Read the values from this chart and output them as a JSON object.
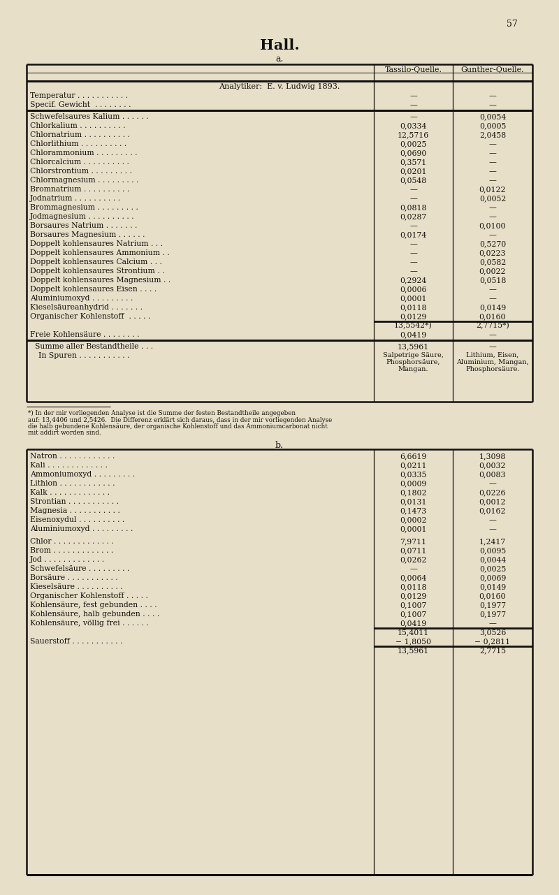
{
  "page_number": "57",
  "title": "Hall.",
  "subtitle": "a.",
  "bg_color": "#e8dfc8",
  "text_color": "#111111",
  "col_header_1": "Tassilo-Quelle.",
  "col_header_2": "Gunther-Quelle.",
  "analytiker_line": "Analytiker:  E. v. Ludwig 1893.",
  "section_a_rows": [
    [
      "Temperatur . . . . . . . . . . .",
      "—",
      "—"
    ],
    [
      "Specif. Gewicht  . . . . . . . .",
      "—",
      "—"
    ],
    [
      "__thick_sep__",
      "",
      ""
    ],
    [
      "Schwefelsaures Kalium . . . . . .",
      "—",
      "0,0054"
    ],
    [
      "Chlorkalium . . . . . . . . . .",
      "0,0334",
      "0,0005"
    ],
    [
      "Chlornatrium . . . . . . . . . .",
      "12,5716",
      "2,0458"
    ],
    [
      "Chlorlithium . . . . . . . . . .",
      "0,0025",
      "—"
    ],
    [
      "Chlorammonium . . . . . . . . .",
      "0,0690",
      "—"
    ],
    [
      "Chlorcalcium . . . . . . . . . .",
      "0,3571",
      "—"
    ],
    [
      "Chlorstrontium . . . . . . . . .",
      "0,0201",
      "—"
    ],
    [
      "Chlormagnesium . . . . . . . . .",
      "0,0548",
      "—"
    ],
    [
      "Bromnatrium . . . . . . . . . .",
      "—",
      "0,0122"
    ],
    [
      "Jodnatrium . . . . . . . . . .",
      "—",
      "0,0052"
    ],
    [
      "Brommagnesium . . . . . . . . .",
      "0,0818",
      "—"
    ],
    [
      "Jodmagnesium . . . . . . . . . .",
      "0,0287",
      "—"
    ],
    [
      "Borsaures Natrium . . . . . . .",
      "—",
      "0,0100"
    ],
    [
      "Borsaures Magnesium . . . . . .",
      "0,0174",
      "—"
    ],
    [
      "Doppelt kohlensaures Natrium . . .",
      "—",
      "0,5270"
    ],
    [
      "Doppelt kohlensaures Ammonium . .",
      "—",
      "0,0223"
    ],
    [
      "Doppelt kohlensaures Calcium . . .",
      "—",
      "0,0582"
    ],
    [
      "Doppelt kohlensaures Strontium . .",
      "—",
      "0,0022"
    ],
    [
      "Doppelt kohlensaures Magnesium . .",
      "0,2924",
      "0,0518"
    ],
    [
      "Doppelt kohlensaures Eisen . . . .",
      "0,0006",
      "—"
    ],
    [
      "Aluminiumoxyd . . . . . . . . .",
      "0,0001",
      "—"
    ],
    [
      "Kieselsäureanhydrid . . . . . . .",
      "0,0118",
      "0,0149"
    ],
    [
      "Organischer Kohlenstoff  . . . . .",
      "0,0129",
      "0,0160"
    ],
    [
      "__subtotal__",
      "13,5542*)",
      "2,7715*)"
    ],
    [
      "Freie Kohlensäure . . . . . . . .",
      "0,0419",
      "—"
    ],
    [
      "__thick_sep2__",
      "",
      ""
    ],
    [
      "  Summe aller Bestandtheile . . .",
      "13,5961",
      "—"
    ],
    [
      "  In Spuren . . . . . . . . . . .",
      "Salpetrige Säure,\nPhosphorsäure,\nMangan.",
      "Lithium, Eisen,\nAluminium, Mangan,\nPhosphorsäure."
    ]
  ],
  "footnote_line": "*) In der mir vorliegenden Analyse ist die Summe der festen Bestandtheile angegeben",
  "footnote_line2": "auf: 13,4406 und 2,5426.  Die Differenz erklärt sich daraus, dass in der mir vorliegenden Analyse",
  "footnote_line3": "die halb gebundene Kohlensäure, der organische Kohlenstoff und das Ammoniumcarbonat nicht",
  "footnote_line4": "mit addirt worden sind.",
  "subtitle_b": "b.",
  "section_b_rows": [
    [
      "Natron . . . . . . . . . . . .",
      "6,6619",
      "1,3098"
    ],
    [
      "Kali . . . . . . . . . . . . .",
      "0,0211",
      "0,0032"
    ],
    [
      "Ammoniumoxyd . . . . . . . . .",
      "0,0335",
      "0,0083"
    ],
    [
      "Lithion . . . . . . . . . . . .",
      "0,0009",
      "—"
    ],
    [
      "Kalk . . . . . . . . . . . . .",
      "0,1802",
      "0,0226"
    ],
    [
      "Strontian . . . . . . . . . . .",
      "0,0131",
      "0,0012"
    ],
    [
      "Magnesia . . . . . . . . . . .",
      "0,1473",
      "0,0162"
    ],
    [
      "Eisenoxydul . . . . . . . . . .",
      "0,0002",
      "—"
    ],
    [
      "Aluminiumoxyd . . . . . . . . .",
      "0,0001",
      "—"
    ],
    [
      "__blank__",
      "",
      ""
    ],
    [
      "Chlor . . . . . . . . . . . . .",
      "7,9711",
      "1,2417"
    ],
    [
      "Brom . . . . . . . . . . . . .",
      "0,0711",
      "0,0095"
    ],
    [
      "Jod . . . . . . . . . . . . .",
      "0,0262",
      "0,0044"
    ],
    [
      "Schwefelsäure . . . . . . . . .",
      "—",
      "0,0025"
    ],
    [
      "Borsäure . . . . . . . . . . .",
      "0,0064",
      "0,0069"
    ],
    [
      "Kieselsäure . . . . . . . . . .",
      "0,0118",
      "0,0149"
    ],
    [
      "Organischer Kohlenstoff . . . . .",
      "0,0129",
      "0,0160"
    ],
    [
      "Kohlensäure, fest gebunden . . . .",
      "0,1007",
      "0,1977"
    ],
    [
      "Kohlensäure, halb gebunden . . . .",
      "0,1007",
      "0,1977"
    ],
    [
      "Kohlensäure, völlig frei . . . . . .",
      "0,0419",
      "—"
    ],
    [
      "__subtotal_b__",
      "15,4011",
      "3,0526"
    ],
    [
      "Sauerstoff . . . . . . . . . . .",
      "− 1,8050",
      "− 0,2811"
    ],
    [
      "__total_b__",
      "13,5961",
      "2,7715"
    ]
  ]
}
